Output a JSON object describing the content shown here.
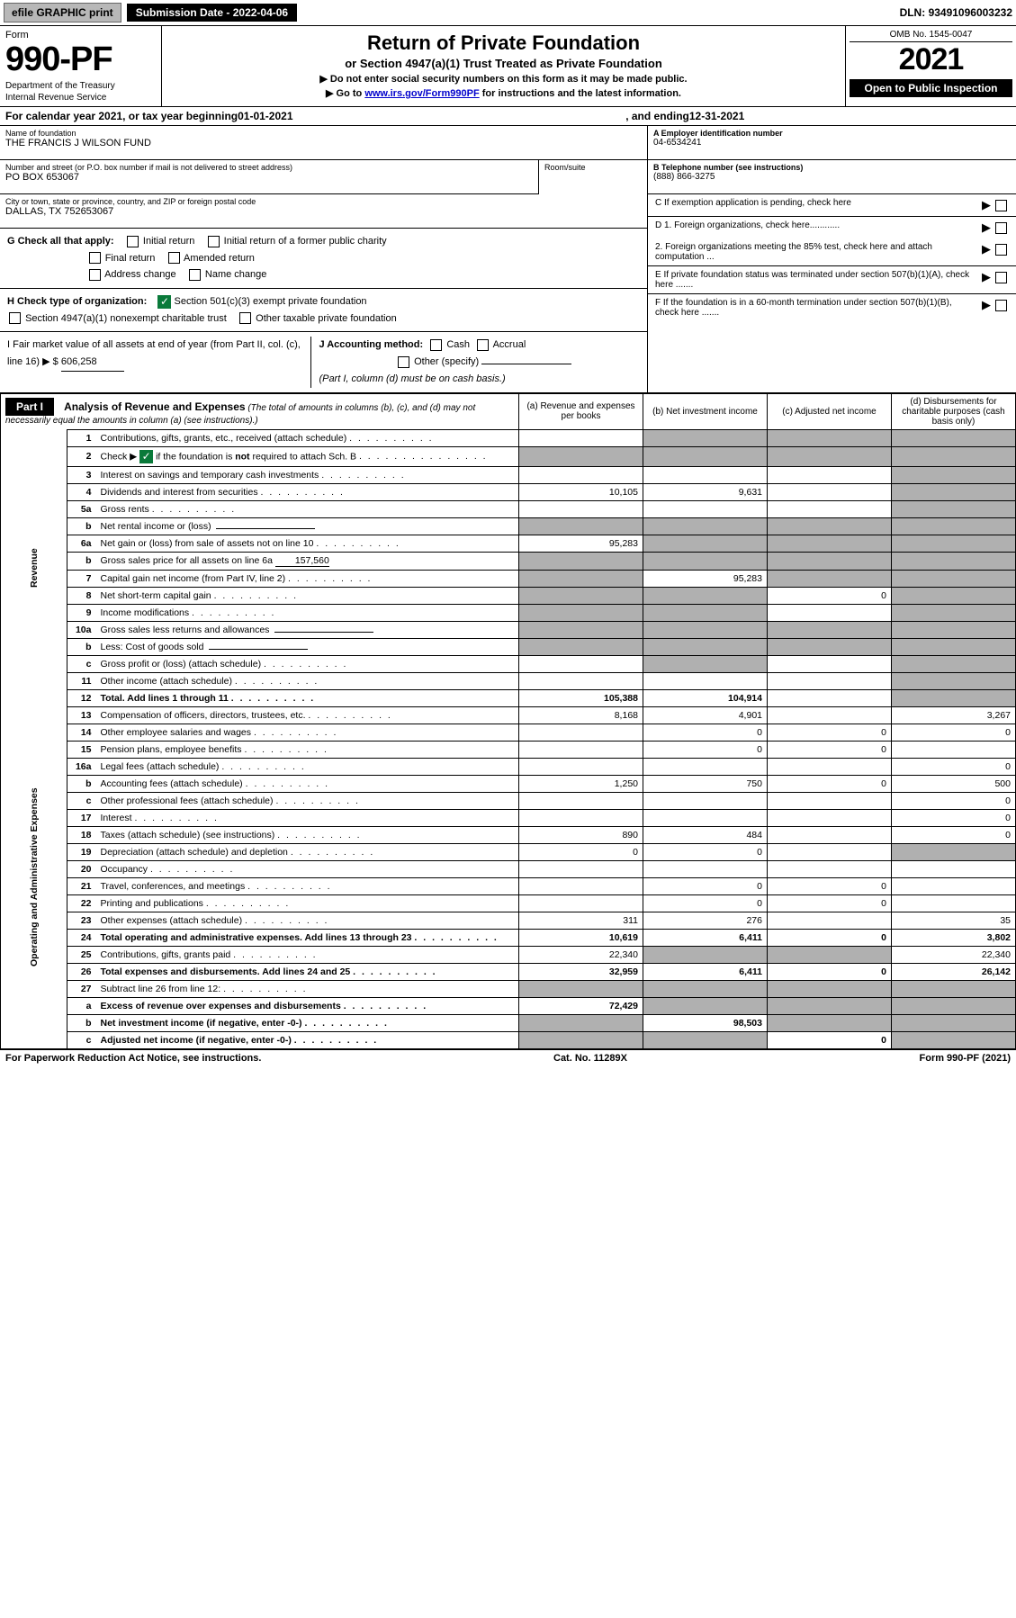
{
  "topbar": {
    "efile": "efile GRAPHIC print",
    "submission_label": "Submission Date - ",
    "submission_date": "2022-04-06",
    "dln_label": "DLN: ",
    "dln": "93491096003232"
  },
  "header": {
    "form_label": "Form",
    "form_number": "990-PF",
    "dept1": "Department of the Treasury",
    "dept2": "Internal Revenue Service",
    "title": "Return of Private Foundation",
    "subtitle": "or Section 4947(a)(1) Trust Treated as Private Foundation",
    "inst1": "▶ Do not enter social security numbers on this form as it may be made public.",
    "inst2_pre": "▶ Go to ",
    "inst2_link": "www.irs.gov/Form990PF",
    "inst2_post": " for instructions and the latest information.",
    "omb": "OMB No. 1545-0047",
    "year": "2021",
    "open": "Open to Public Inspection"
  },
  "calendar": {
    "text_pre": "For calendar year 2021, or tax year beginning ",
    "begin": "01-01-2021",
    "mid": " , and ending ",
    "end": "12-31-2021"
  },
  "identity": {
    "name_label": "Name of foundation",
    "name": "THE FRANCIS J WILSON FUND",
    "addr_label": "Number and street (or P.O. box number if mail is not delivered to street address)",
    "addr": "PO BOX 653067",
    "room_label": "Room/suite",
    "city_label": "City or town, state or province, country, and ZIP or foreign postal code",
    "city": "DALLAS, TX  752653067",
    "ein_label": "A Employer identification number",
    "ein": "04-6534241",
    "phone_label": "B Telephone number (see instructions)",
    "phone": "(888) 866-3275",
    "c_label": "C If exemption application is pending, check here"
  },
  "checks": {
    "g_label": "G Check all that apply:",
    "g_items": [
      "Initial return",
      "Initial return of a former public charity",
      "Final return",
      "Amended return",
      "Address change",
      "Name change"
    ],
    "h_label": "H Check type of organization:",
    "h1": "Section 501(c)(3) exempt private foundation",
    "h2": "Section 4947(a)(1) nonexempt charitable trust",
    "h3": "Other taxable private foundation",
    "i_label": "I Fair market value of all assets at end of year (from Part II, col. (c), line 16) ▶ $",
    "i_value": "606,258",
    "j_label": "J Accounting method:",
    "j_cash": "Cash",
    "j_accrual": "Accrual",
    "j_other": "Other (specify)",
    "j_note": "(Part I, column (d) must be on cash basis.)",
    "d1": "D 1. Foreign organizations, check here............",
    "d2": "2. Foreign organizations meeting the 85% test, check here and attach computation ...",
    "e": "E If private foundation status was terminated under section 507(b)(1)(A), check here .......",
    "f": "F If the foundation is in a 60-month termination under section 507(b)(1)(B), check here ......."
  },
  "part1": {
    "label": "Part I",
    "title": "Analysis of Revenue and Expenses",
    "title_note": "(The total of amounts in columns (b), (c), and (d) may not necessarily equal the amounts in column (a) (see instructions).)",
    "col_a": "(a) Revenue and expenses per books",
    "col_b": "(b) Net investment income",
    "col_c": "(c) Adjusted net income",
    "col_d": "(d) Disbursements for charitable purposes (cash basis only)",
    "section_revenue": "Revenue",
    "section_expenses": "Operating and Administrative Expenses"
  },
  "rows": [
    {
      "n": "1",
      "desc": "Contributions, gifts, grants, etc., received (attach schedule)",
      "a": "",
      "b": "s",
      "c": "s",
      "d": "s"
    },
    {
      "n": "2",
      "desc": "Check ▶ [✓] if the foundation is not required to attach Sch. B",
      "a": "s",
      "b": "s",
      "c": "s",
      "d": "s",
      "checked": true
    },
    {
      "n": "3",
      "desc": "Interest on savings and temporary cash investments",
      "a": "",
      "b": "",
      "c": "",
      "d": "s"
    },
    {
      "n": "4",
      "desc": "Dividends and interest from securities",
      "a": "10,105",
      "b": "9,631",
      "c": "",
      "d": "s"
    },
    {
      "n": "5a",
      "desc": "Gross rents",
      "a": "",
      "b": "",
      "c": "",
      "d": "s"
    },
    {
      "n": "b",
      "desc": "Net rental income or (loss)",
      "a": "s",
      "b": "s",
      "c": "s",
      "d": "s",
      "inline": true
    },
    {
      "n": "6a",
      "desc": "Net gain or (loss) from sale of assets not on line 10",
      "a": "95,283",
      "b": "s",
      "c": "s",
      "d": "s"
    },
    {
      "n": "b",
      "desc": "Gross sales price for all assets on line 6a",
      "a": "s",
      "b": "s",
      "c": "s",
      "d": "s",
      "inline_val": "157,560"
    },
    {
      "n": "7",
      "desc": "Capital gain net income (from Part IV, line 2)",
      "a": "s",
      "b": "95,283",
      "c": "s",
      "d": "s"
    },
    {
      "n": "8",
      "desc": "Net short-term capital gain",
      "a": "s",
      "b": "s",
      "c": "0",
      "d": "s"
    },
    {
      "n": "9",
      "desc": "Income modifications",
      "a": "s",
      "b": "s",
      "c": "",
      "d": "s"
    },
    {
      "n": "10a",
      "desc": "Gross sales less returns and allowances",
      "a": "s",
      "b": "s",
      "c": "s",
      "d": "s",
      "inline": true
    },
    {
      "n": "b",
      "desc": "Less: Cost of goods sold",
      "a": "s",
      "b": "s",
      "c": "s",
      "d": "s",
      "inline": true
    },
    {
      "n": "c",
      "desc": "Gross profit or (loss) (attach schedule)",
      "a": "",
      "b": "s",
      "c": "",
      "d": "s"
    },
    {
      "n": "11",
      "desc": "Other income (attach schedule)",
      "a": "",
      "b": "",
      "c": "",
      "d": "s"
    },
    {
      "n": "12",
      "desc": "Total. Add lines 1 through 11",
      "a": "105,388",
      "b": "104,914",
      "c": "",
      "d": "s",
      "bold": true
    },
    {
      "n": "13",
      "desc": "Compensation of officers, directors, trustees, etc.",
      "a": "8,168",
      "b": "4,901",
      "c": "",
      "d": "3,267"
    },
    {
      "n": "14",
      "desc": "Other employee salaries and wages",
      "a": "",
      "b": "0",
      "c": "0",
      "d": "0"
    },
    {
      "n": "15",
      "desc": "Pension plans, employee benefits",
      "a": "",
      "b": "0",
      "c": "0",
      "d": ""
    },
    {
      "n": "16a",
      "desc": "Legal fees (attach schedule)",
      "a": "",
      "b": "",
      "c": "",
      "d": "0"
    },
    {
      "n": "b",
      "desc": "Accounting fees (attach schedule)",
      "a": "1,250",
      "b": "750",
      "c": "0",
      "d": "500"
    },
    {
      "n": "c",
      "desc": "Other professional fees (attach schedule)",
      "a": "",
      "b": "",
      "c": "",
      "d": "0"
    },
    {
      "n": "17",
      "desc": "Interest",
      "a": "",
      "b": "",
      "c": "",
      "d": "0"
    },
    {
      "n": "18",
      "desc": "Taxes (attach schedule) (see instructions)",
      "a": "890",
      "b": "484",
      "c": "",
      "d": "0"
    },
    {
      "n": "19",
      "desc": "Depreciation (attach schedule) and depletion",
      "a": "0",
      "b": "0",
      "c": "",
      "d": "s"
    },
    {
      "n": "20",
      "desc": "Occupancy",
      "a": "",
      "b": "",
      "c": "",
      "d": ""
    },
    {
      "n": "21",
      "desc": "Travel, conferences, and meetings",
      "a": "",
      "b": "0",
      "c": "0",
      "d": ""
    },
    {
      "n": "22",
      "desc": "Printing and publications",
      "a": "",
      "b": "0",
      "c": "0",
      "d": ""
    },
    {
      "n": "23",
      "desc": "Other expenses (attach schedule)",
      "a": "311",
      "b": "276",
      "c": "",
      "d": "35"
    },
    {
      "n": "24",
      "desc": "Total operating and administrative expenses. Add lines 13 through 23",
      "a": "10,619",
      "b": "6,411",
      "c": "0",
      "d": "3,802",
      "bold": true
    },
    {
      "n": "25",
      "desc": "Contributions, gifts, grants paid",
      "a": "22,340",
      "b": "s",
      "c": "s",
      "d": "22,340"
    },
    {
      "n": "26",
      "desc": "Total expenses and disbursements. Add lines 24 and 25",
      "a": "32,959",
      "b": "6,411",
      "c": "0",
      "d": "26,142",
      "bold": true
    },
    {
      "n": "27",
      "desc": "Subtract line 26 from line 12:",
      "a": "s",
      "b": "s",
      "c": "s",
      "d": "s"
    },
    {
      "n": "a",
      "desc": "Excess of revenue over expenses and disbursements",
      "a": "72,429",
      "b": "s",
      "c": "s",
      "d": "s",
      "bold": true
    },
    {
      "n": "b",
      "desc": "Net investment income (if negative, enter -0-)",
      "a": "s",
      "b": "98,503",
      "c": "s",
      "d": "s",
      "bold": true
    },
    {
      "n": "c",
      "desc": "Adjusted net income (if negative, enter -0-)",
      "a": "s",
      "b": "s",
      "c": "0",
      "d": "s",
      "bold": true
    }
  ],
  "footer": {
    "left": "For Paperwork Reduction Act Notice, see instructions.",
    "mid": "Cat. No. 11289X",
    "right": "Form 990-PF (2021)"
  },
  "colors": {
    "shaded": "#b0b0b0",
    "green": "#0a7a3a",
    "link": "#0000cc"
  }
}
